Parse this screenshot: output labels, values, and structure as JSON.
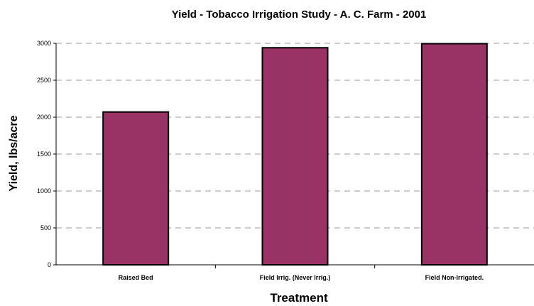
{
  "chart_data": {
    "type": "bar",
    "title": "Yield - Tobacco Irrigation Study - A. C. Farm - 2001",
    "xlabel": "Treatment",
    "ylabel": "Yield, lbs/acre",
    "categories": [
      "Raised Bed",
      "Field Irrig. (Never Irrig.)",
      "Field Non-Irrigated."
    ],
    "values": [
      2070,
      2940,
      2995
    ],
    "ylim": [
      0,
      3000
    ],
    "yticks": [
      0,
      500,
      1000,
      1500,
      2000,
      2500,
      3000
    ],
    "grid": true,
    "legend": "none",
    "colors": {
      "bar": "#993366",
      "bar_edge": "#000000",
      "grid": "#999999"
    }
  }
}
